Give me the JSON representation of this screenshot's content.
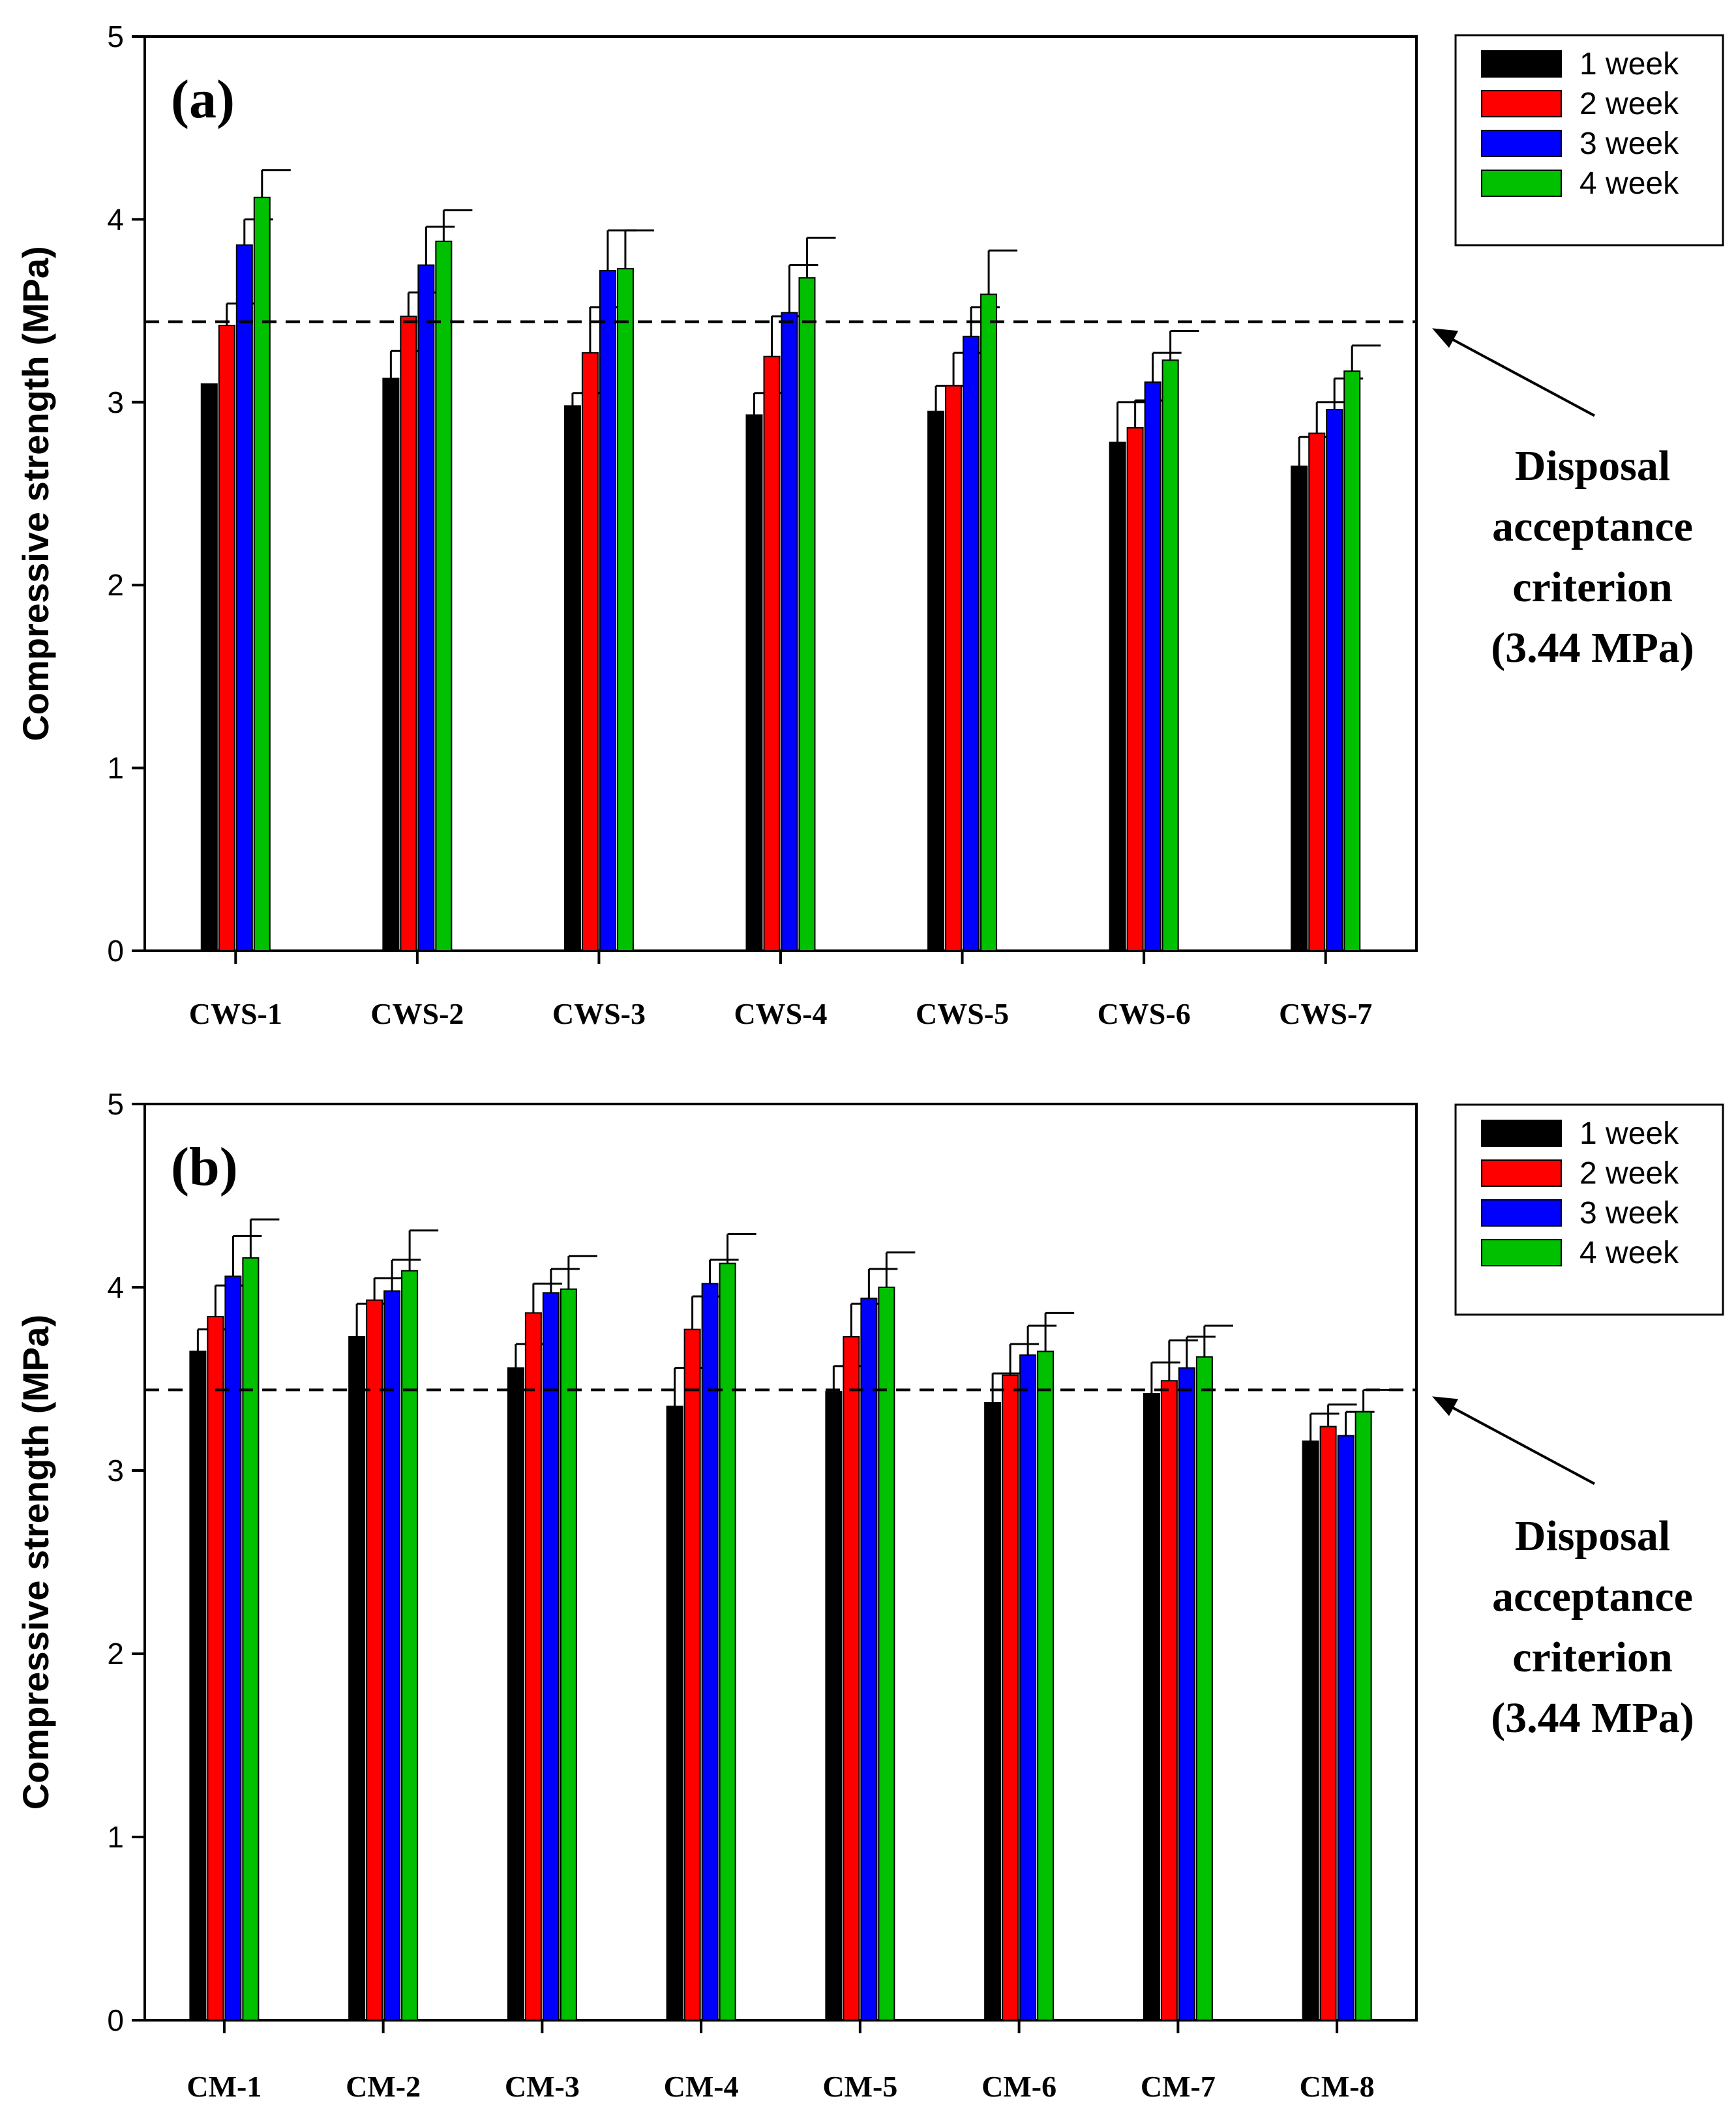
{
  "chart_data": [
    {
      "type": "bar",
      "panel_label": "(a)",
      "ylabel": "Compressive strength (MPa)",
      "xlabel": "",
      "ylim": [
        0,
        5
      ],
      "yticks": [
        "0",
        "1",
        "2",
        "3",
        "4",
        "5"
      ],
      "categories": [
        "CWS-1",
        "CWS-2",
        "CWS-3",
        "CWS-4",
        "CWS-5",
        "CWS-6",
        "CWS-7"
      ],
      "series": [
        {
          "name": "1 week",
          "color": "#000000",
          "values": [
            3.1,
            3.13,
            2.98,
            2.93,
            2.95,
            2.78,
            2.65
          ],
          "errors": [
            0.0,
            0.15,
            0.07,
            0.12,
            0.14,
            0.22,
            0.16
          ]
        },
        {
          "name": "2 week",
          "color": "#ff0000",
          "values": [
            3.42,
            3.47,
            3.27,
            3.25,
            3.09,
            2.86,
            2.83
          ],
          "errors": [
            0.12,
            0.13,
            0.25,
            0.22,
            0.18,
            0.15,
            0.17
          ]
        },
        {
          "name": "3 week",
          "color": "#0000ff",
          "values": [
            3.86,
            3.75,
            3.72,
            3.49,
            3.36,
            3.11,
            2.96
          ],
          "errors": [
            0.14,
            0.21,
            0.22,
            0.26,
            0.16,
            0.16,
            0.17
          ]
        },
        {
          "name": "4 week",
          "color": "#00c000",
          "values": [
            4.12,
            3.88,
            3.73,
            3.68,
            3.59,
            3.23,
            3.17
          ],
          "errors": [
            0.15,
            0.17,
            0.21,
            0.22,
            0.24,
            0.16,
            0.14
          ]
        }
      ],
      "reference_line": {
        "value": 3.44,
        "style": "dashed"
      },
      "annotation": [
        "Disposal",
        "acceptance",
        "criterion",
        "(3.44 MPa)"
      ],
      "legend_position": "top-right"
    },
    {
      "type": "bar",
      "panel_label": "(b)",
      "ylabel": "Compressive strength (MPa)",
      "xlabel": "",
      "ylim": [
        0,
        5
      ],
      "yticks": [
        "0",
        "1",
        "2",
        "3",
        "4",
        "5"
      ],
      "categories": [
        "CM-1",
        "CM-2",
        "CM-3",
        "CM-4",
        "CM-5",
        "CM-6",
        "CM-7",
        "CM-8"
      ],
      "series": [
        {
          "name": "1 week",
          "color": "#000000",
          "values": [
            3.65,
            3.73,
            3.56,
            3.35,
            3.43,
            3.37,
            3.42,
            3.16
          ],
          "errors": [
            0.12,
            0.18,
            0.13,
            0.21,
            0.14,
            0.16,
            0.17,
            0.15
          ]
        },
        {
          "name": "2 week",
          "color": "#ff0000",
          "values": [
            3.84,
            3.93,
            3.86,
            3.77,
            3.73,
            3.52,
            3.49,
            3.24
          ],
          "errors": [
            0.17,
            0.12,
            0.16,
            0.18,
            0.18,
            0.17,
            0.22,
            0.12
          ]
        },
        {
          "name": "3 week",
          "color": "#0000ff",
          "values": [
            4.06,
            3.98,
            3.97,
            4.02,
            3.94,
            3.63,
            3.56,
            3.19
          ],
          "errors": [
            0.22,
            0.17,
            0.13,
            0.13,
            0.16,
            0.16,
            0.17,
            0.13
          ]
        },
        {
          "name": "4 week",
          "color": "#00c000",
          "values": [
            4.16,
            4.09,
            3.99,
            4.13,
            4.0,
            3.65,
            3.62,
            3.32
          ],
          "errors": [
            0.21,
            0.22,
            0.18,
            0.16,
            0.19,
            0.21,
            0.17,
            0.12
          ]
        }
      ],
      "reference_line": {
        "value": 3.44,
        "style": "dashed"
      },
      "annotation": [
        "Disposal",
        "acceptance",
        "criterion",
        "(3.44 MPa)"
      ],
      "legend_position": "top-right"
    }
  ]
}
